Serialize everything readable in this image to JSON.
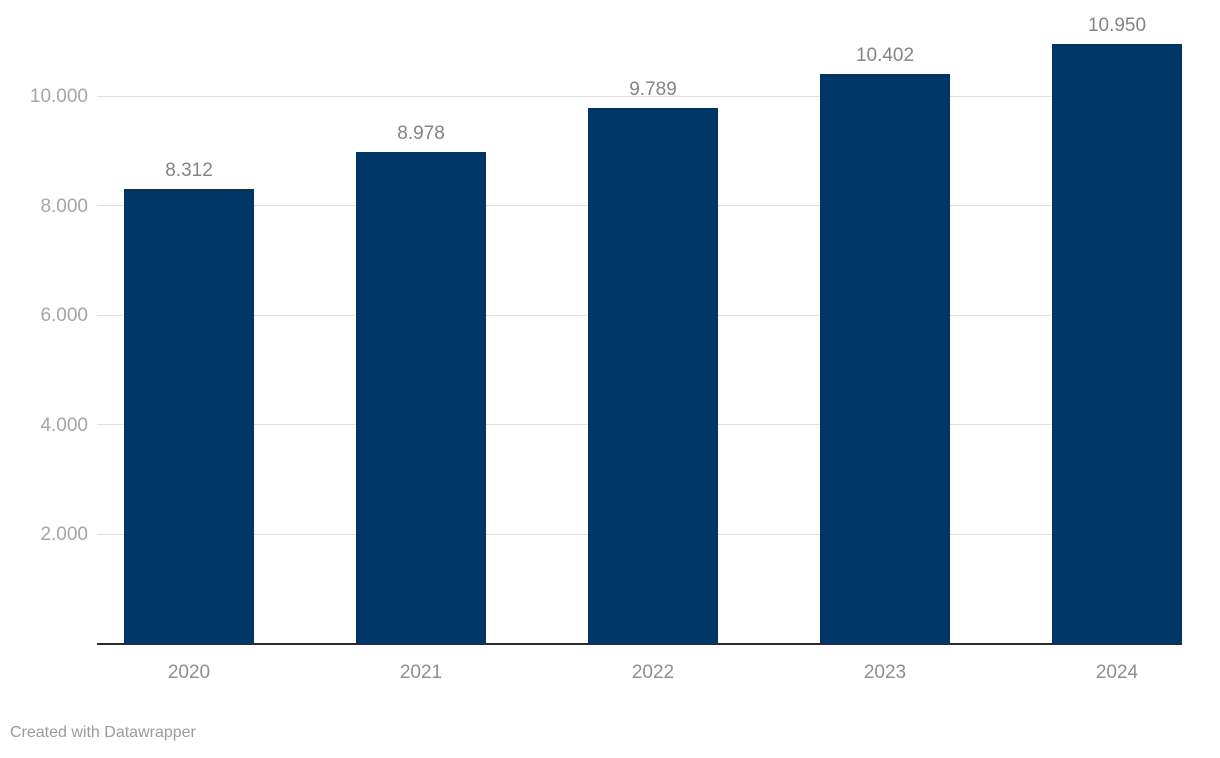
{
  "chart_data": {
    "type": "bar",
    "categories": [
      "2020",
      "2021",
      "2022",
      "2023",
      "2024"
    ],
    "values": [
      8312,
      8978,
      9789,
      10402,
      10950
    ],
    "value_labels": [
      "8.312",
      "8.978",
      "9.789",
      "10.402",
      "10.950"
    ],
    "title": "",
    "xlabel": "",
    "ylabel": "",
    "ylim": [
      0,
      11200
    ],
    "y_ticks": [
      2000,
      4000,
      6000,
      8000,
      10000
    ],
    "y_tick_labels": [
      "2.000",
      "4.000",
      "6.000",
      "8.000",
      "10.000"
    ],
    "grid": true,
    "legend": "none",
    "bar_color": "#003567",
    "gridline_color": "#dedede",
    "baseline_color": "#2b2b2b",
    "value_label_color": "#848484",
    "axis_label_color": "#a5a5a5",
    "category_label_color": "#8f8f8f"
  },
  "footer": {
    "credit": "Created with Datawrapper"
  }
}
